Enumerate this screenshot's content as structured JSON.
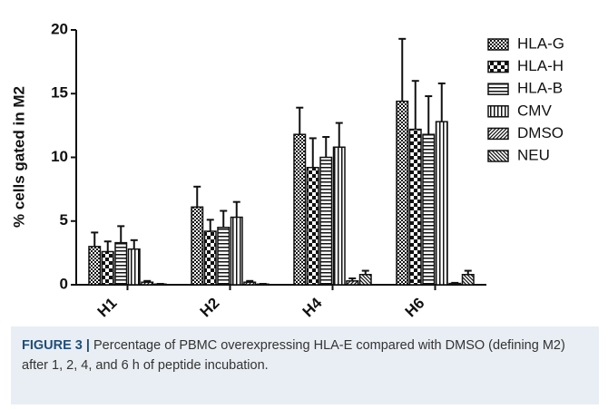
{
  "chart_data": {
    "type": "bar",
    "y_label": "% cells gated in M2",
    "categories": [
      "H1",
      "H2",
      "H4",
      "H6"
    ],
    "ylim": [
      0,
      20
    ],
    "yticks": [
      0,
      5,
      10,
      15,
      20
    ],
    "series": [
      {
        "name": "HLA-G",
        "color": "#111111",
        "values": [
          3.0,
          6.1,
          11.8,
          14.4
        ],
        "errors": [
          1.1,
          1.6,
          2.1,
          4.9
        ]
      },
      {
        "name": "HLA-H",
        "color": "#111111",
        "values": [
          2.6,
          4.2,
          9.2,
          12.2
        ],
        "errors": [
          0.8,
          0.9,
          2.3,
          3.8
        ]
      },
      {
        "name": "HLA-B",
        "color": "#111111",
        "values": [
          3.3,
          4.5,
          10.0,
          11.8
        ],
        "errors": [
          1.3,
          1.3,
          1.6,
          3.0
        ]
      },
      {
        "name": "CMV",
        "color": "#111111",
        "values": [
          2.8,
          5.3,
          10.8,
          12.8
        ],
        "errors": [
          0.7,
          1.2,
          1.9,
          3.0
        ]
      },
      {
        "name": "DMSO",
        "color": "#111111",
        "values": [
          0.2,
          0.2,
          0.3,
          0.1
        ],
        "errors": [
          0.1,
          0.1,
          0.2,
          0.05
        ]
      },
      {
        "name": "NEU",
        "color": "#111111",
        "values": [
          0.05,
          0.05,
          0.8,
          0.8
        ],
        "errors": [
          0.02,
          0.02,
          0.3,
          0.3
        ]
      }
    ],
    "caption": {
      "label": "FIGURE 3 |",
      "text": "Percentage of PBMC overexpressing HLA-E compared with DMSO (defining M2) after 1, 2, 4, and 6 h of peptide incubation."
    }
  }
}
